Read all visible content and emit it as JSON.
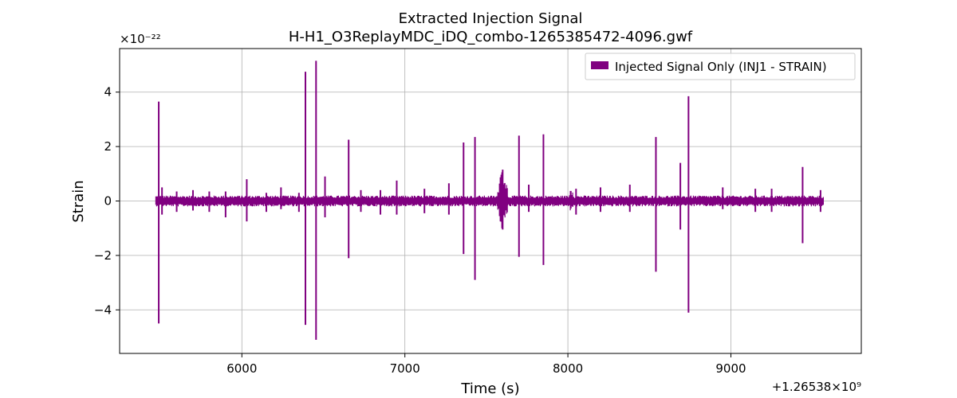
{
  "chart_data": {
    "type": "line",
    "title": "Extracted Injection Signal",
    "subtitle": "H-H1_O3ReplayMDC_iDQ_combo-1265385472-4096.gwf",
    "xlabel": "Time (s)",
    "ylabel": "Strain",
    "x_offset_label": "+1.26538×10⁹",
    "y_scale_label": "×10⁻²²",
    "xlim": [
      5250,
      9800
    ],
    "ylim": [
      -5.6,
      5.6
    ],
    "xticks": [
      6000,
      7000,
      8000,
      9000
    ],
    "xtick_labels": [
      "6000",
      "7000",
      "8000",
      "9000"
    ],
    "yticks": [
      -4,
      -2,
      0,
      2,
      4
    ],
    "ytick_labels": [
      "−4",
      "−2",
      "0",
      "2",
      "4"
    ],
    "grid": true,
    "legend_position": "top-right",
    "series": [
      {
        "name": "Injected Signal Only (INJ1 - STRAIN)",
        "color": "#800080",
        "x_range": [
          5472,
          9568
        ],
        "baseline_amplitude": 0.2,
        "spikes": [
          {
            "x": 5490,
            "max": 3.65,
            "min": -4.5
          },
          {
            "x": 5510,
            "max": 0.5,
            "min": -0.5
          },
          {
            "x": 5600,
            "max": 0.35,
            "min": -0.4
          },
          {
            "x": 5700,
            "max": 0.4,
            "min": -0.35
          },
          {
            "x": 5800,
            "max": 0.35,
            "min": -0.4
          },
          {
            "x": 5900,
            "max": 0.35,
            "min": -0.6
          },
          {
            "x": 6030,
            "max": 0.8,
            "min": -0.75
          },
          {
            "x": 6150,
            "max": 0.3,
            "min": -0.4
          },
          {
            "x": 6240,
            "max": 0.5,
            "min": -0.3
          },
          {
            "x": 6350,
            "max": 0.3,
            "min": -0.4
          },
          {
            "x": 6390,
            "max": 4.75,
            "min": -4.55
          },
          {
            "x": 6455,
            "max": 5.15,
            "min": -5.1
          },
          {
            "x": 6510,
            "max": 0.9,
            "min": -0.6
          },
          {
            "x": 6655,
            "max": 2.25,
            "min": -2.1
          },
          {
            "x": 6730,
            "max": 0.4,
            "min": -0.4
          },
          {
            "x": 6850,
            "max": 0.4,
            "min": -0.5
          },
          {
            "x": 6950,
            "max": 0.75,
            "min": -0.5
          },
          {
            "x": 7120,
            "max": 0.45,
            "min": -0.45
          },
          {
            "x": 7270,
            "max": 0.65,
            "min": -0.5
          },
          {
            "x": 7360,
            "max": 2.15,
            "min": -1.95
          },
          {
            "x": 7430,
            "max": 2.35,
            "min": -2.9
          },
          {
            "x": 7600,
            "max": 1.15,
            "min": -1.05
          },
          {
            "x": 7700,
            "max": 2.4,
            "min": -2.05
          },
          {
            "x": 7760,
            "max": 0.6,
            "min": -0.4
          },
          {
            "x": 7850,
            "max": 2.45,
            "min": -2.35
          },
          {
            "x": 8050,
            "max": 0.45,
            "min": -0.5
          },
          {
            "x": 8200,
            "max": 0.5,
            "min": -0.4
          },
          {
            "x": 8380,
            "max": 0.6,
            "min": -0.4
          },
          {
            "x": 8540,
            "max": 2.35,
            "min": -2.6
          },
          {
            "x": 8690,
            "max": 1.4,
            "min": -1.05
          },
          {
            "x": 8740,
            "max": 3.85,
            "min": -4.1
          },
          {
            "x": 8950,
            "max": 0.5,
            "min": -0.3
          },
          {
            "x": 9150,
            "max": 0.45,
            "min": -0.4
          },
          {
            "x": 9250,
            "max": 0.45,
            "min": -0.4
          },
          {
            "x": 9440,
            "max": 1.25,
            "min": -1.55
          },
          {
            "x": 9550,
            "max": 0.4,
            "min": -0.4
          }
        ],
        "bursts": [
          {
            "x_start": 7560,
            "x_end": 7640,
            "amplitude": 1.1
          },
          {
            "x_start": 8000,
            "x_end": 8040,
            "amplitude": 0.5
          }
        ]
      }
    ]
  }
}
